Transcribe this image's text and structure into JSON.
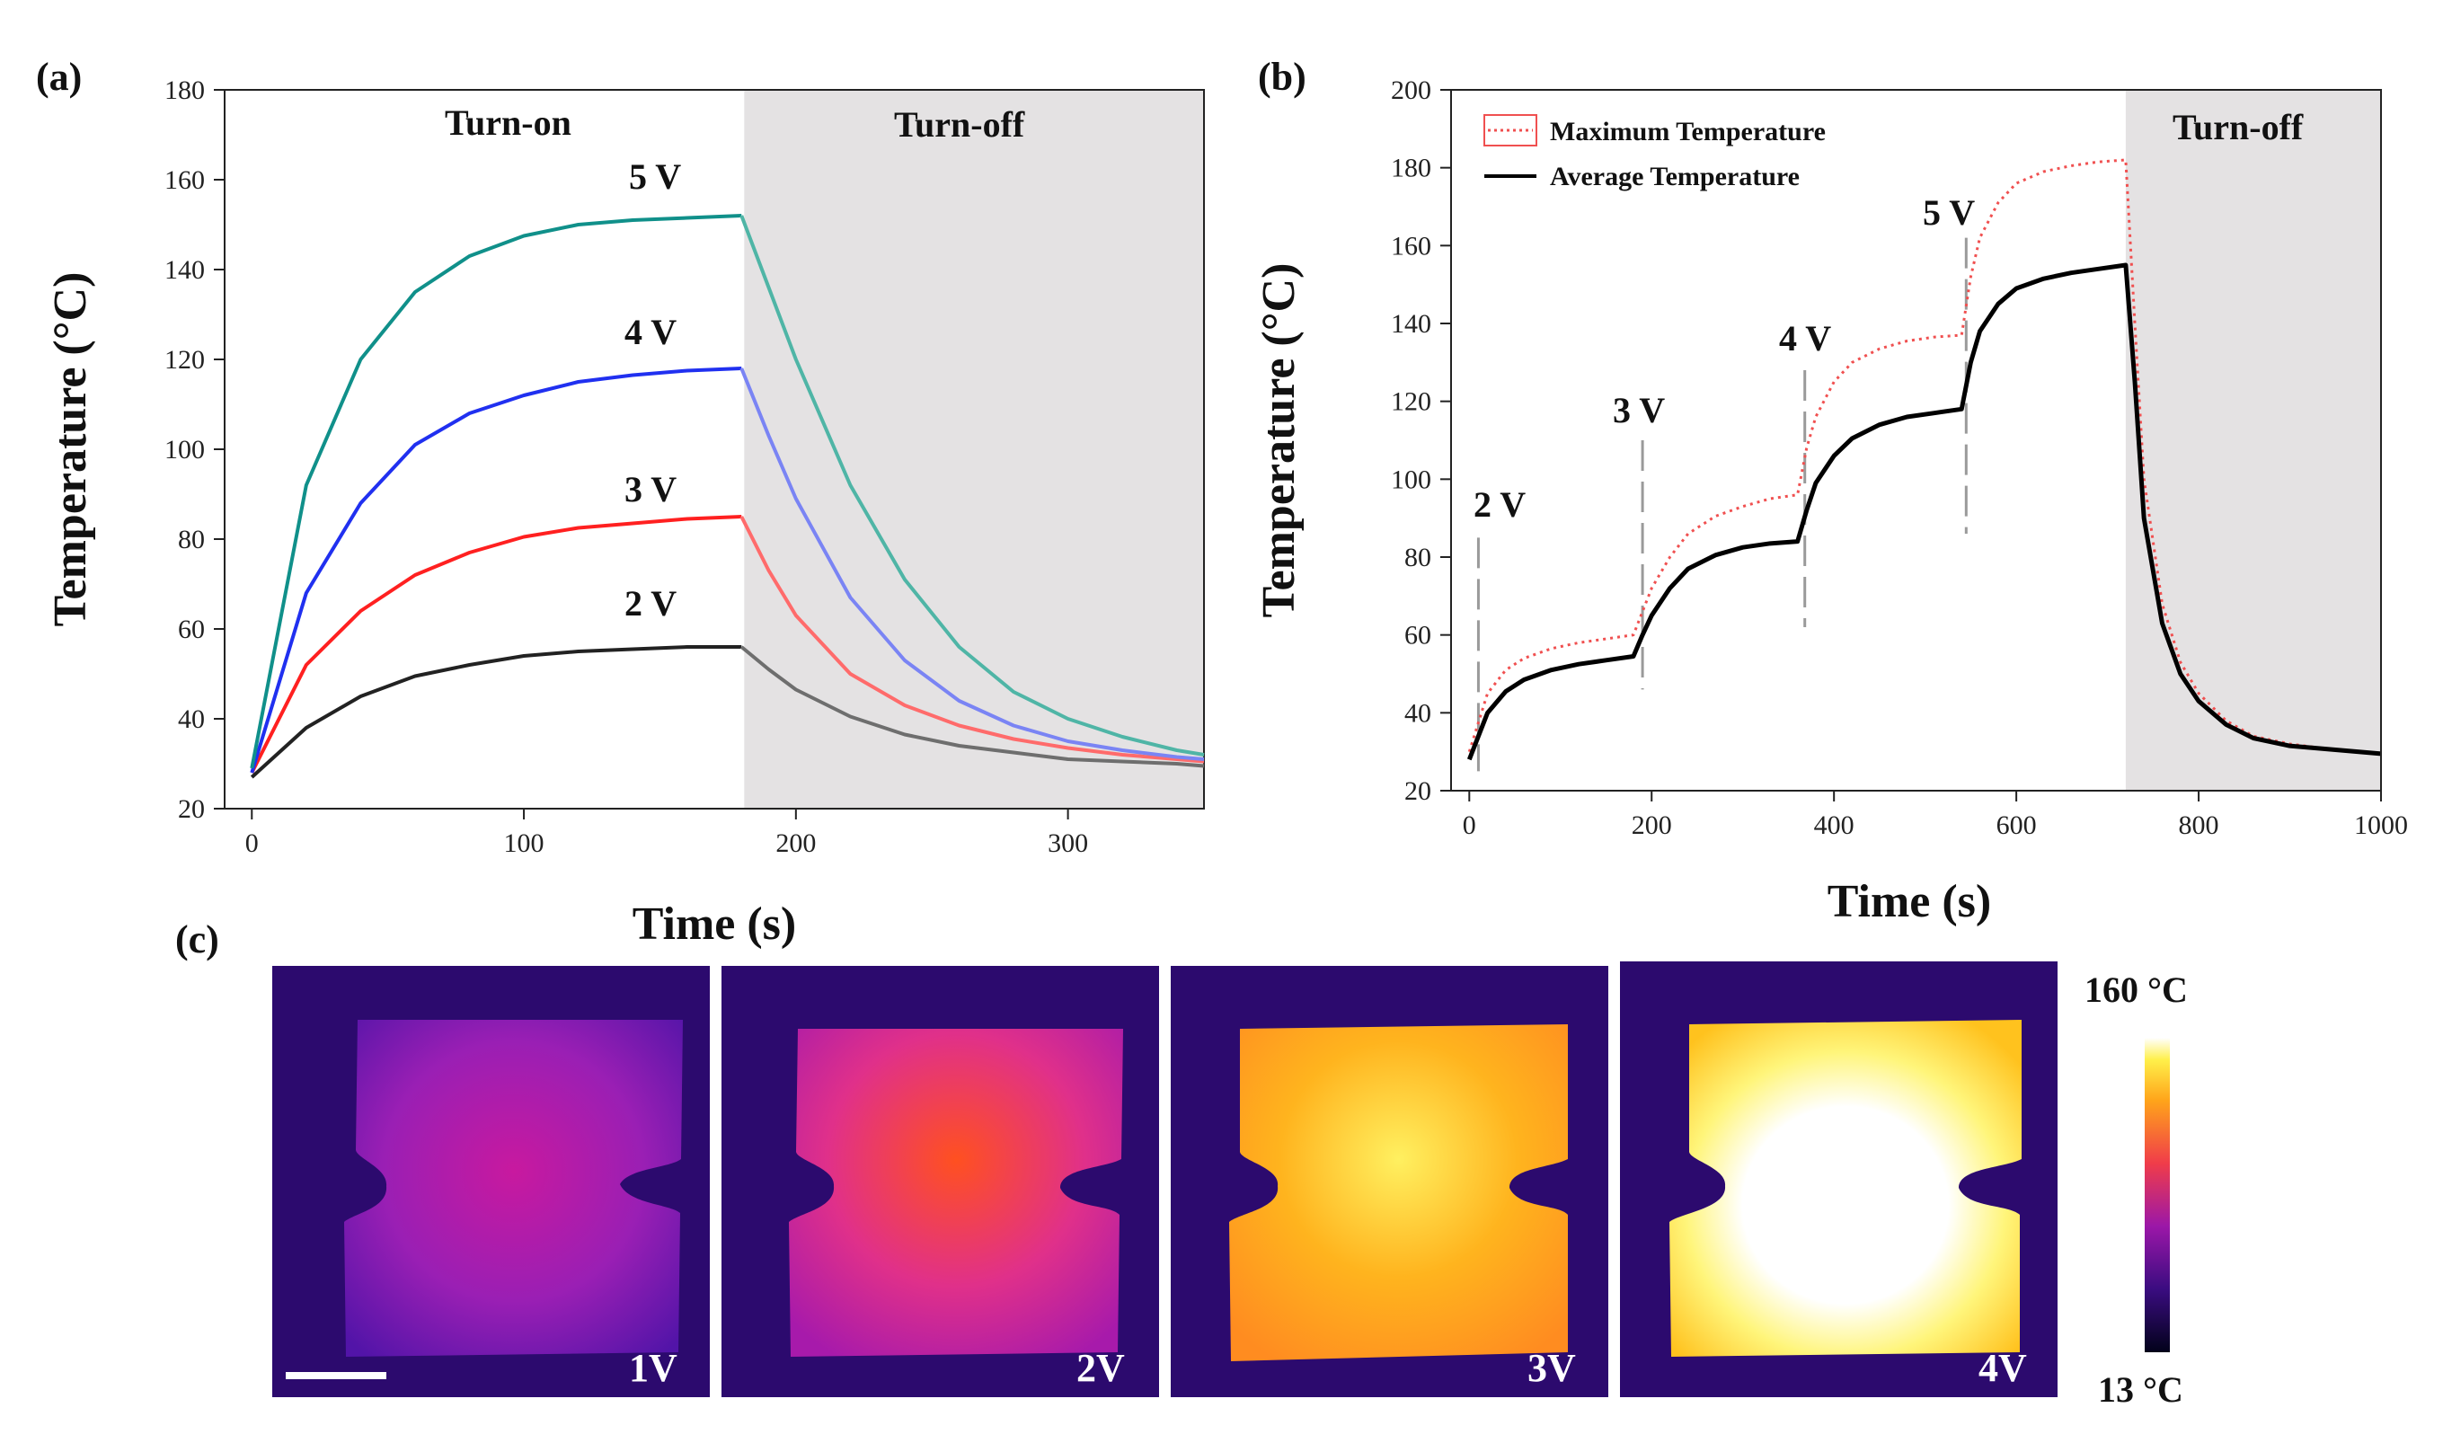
{
  "panel_labels": {
    "a": "(a)",
    "b": "(b)",
    "c": "(c)"
  },
  "chart_data": [
    {
      "type": "line",
      "panel": "(a)",
      "xlabel": "Time (s)",
      "ylabel": "Temperature (°C)",
      "xlim": [
        -10,
        350
      ],
      "ylim": [
        20,
        180
      ],
      "xticks": [
        0,
        100,
        200,
        300
      ],
      "yticks": [
        20,
        40,
        60,
        80,
        100,
        120,
        140,
        160,
        180
      ],
      "regions": [
        {
          "label": "Turn-on",
          "start": -10,
          "end": 181,
          "shaded": false
        },
        {
          "label": "Turn-off",
          "start": 181,
          "end": 350,
          "shaded": true,
          "color": "#e4e2e3"
        }
      ],
      "series": [
        {
          "name": "2 V",
          "color": "#222222",
          "off_color": "#6e6e6e",
          "x": [
            0,
            20,
            40,
            60,
            80,
            100,
            120,
            140,
            160,
            180,
            190,
            200,
            220,
            240,
            260,
            280,
            300,
            320,
            340,
            350
          ],
          "y": [
            27,
            38,
            45,
            49.5,
            52,
            54,
            55,
            55.5,
            56,
            56,
            51,
            46.5,
            40.5,
            36.5,
            34,
            32.5,
            31,
            30.5,
            30,
            29.5
          ]
        },
        {
          "name": "3 V",
          "color": "#ff2020",
          "off_color": "#ff6b6b",
          "x": [
            0,
            20,
            40,
            60,
            80,
            100,
            120,
            140,
            160,
            180,
            190,
            200,
            220,
            240,
            260,
            280,
            300,
            320,
            340,
            350
          ],
          "y": [
            28,
            52,
            64,
            72,
            77,
            80.5,
            82.5,
            83.5,
            84.5,
            85,
            73,
            63,
            50,
            43,
            38.5,
            35.5,
            33.5,
            32,
            31,
            30.5
          ]
        },
        {
          "name": "4 V",
          "color": "#2030f0",
          "off_color": "#7a84f4",
          "x": [
            0,
            20,
            40,
            60,
            80,
            100,
            120,
            140,
            160,
            180,
            190,
            200,
            220,
            240,
            260,
            280,
            300,
            320,
            340,
            350
          ],
          "y": [
            28,
            68,
            88,
            101,
            108,
            112,
            115,
            116.5,
            117.5,
            118,
            103,
            89,
            67,
            53,
            44,
            38.5,
            35,
            33,
            31.5,
            31
          ]
        },
        {
          "name": "5 V",
          "color": "#10908a",
          "off_color": "#4fb5a6",
          "x": [
            0,
            20,
            40,
            60,
            80,
            100,
            120,
            140,
            160,
            180,
            190,
            200,
            220,
            240,
            260,
            280,
            300,
            320,
            340,
            350
          ],
          "y": [
            29,
            92,
            120,
            135,
            143,
            147.5,
            150,
            151,
            151.5,
            152,
            136,
            120,
            92,
            71,
            56,
            46,
            40,
            36,
            33,
            32
          ]
        }
      ]
    },
    {
      "type": "line",
      "panel": "(b)",
      "xlabel": "Time (s)",
      "ylabel": "Temperature (°C)",
      "xlim": [
        -20,
        1000
      ],
      "ylim": [
        20,
        200
      ],
      "xticks": [
        0,
        200,
        400,
        600,
        800,
        1000
      ],
      "yticks": [
        20,
        40,
        60,
        80,
        100,
        120,
        140,
        160,
        180,
        200
      ],
      "regions": [
        {
          "label": "Turn-off",
          "start": 720,
          "end": 1000,
          "shaded": true,
          "color": "#e4e2e3"
        }
      ],
      "step_markers": [
        {
          "label": "2 V",
          "x": 10,
          "y_top": 85,
          "y_bottom": 25
        },
        {
          "label": "3 V",
          "x": 190,
          "y_top": 110,
          "y_bottom": 46
        },
        {
          "label": "4 V",
          "x": 368,
          "y_top": 128,
          "y_bottom": 62
        },
        {
          "label": "5 V",
          "x": 545,
          "y_top": 162,
          "y_bottom": 86
        }
      ],
      "legend": {
        "position": "top-left"
      },
      "series": [
        {
          "name": "Maximum Temperature",
          "color": "#f05050",
          "style": "dotted",
          "x": [
            0,
            20,
            40,
            60,
            90,
            120,
            150,
            180,
            190,
            200,
            220,
            240,
            270,
            300,
            330,
            360,
            370,
            380,
            400,
            420,
            450,
            480,
            510,
            540,
            550,
            560,
            580,
            600,
            630,
            660,
            690,
            720,
            730,
            740,
            760,
            780,
            800,
            830,
            860,
            900,
            950,
            1000
          ],
          "y": [
            30,
            45,
            51,
            54,
            56.5,
            58,
            59,
            60,
            66,
            72,
            80,
            86,
            90.5,
            93,
            95,
            96,
            108,
            116,
            125,
            130,
            133.5,
            135.5,
            136.5,
            137,
            152,
            162,
            171,
            176,
            179,
            180.5,
            181.5,
            182,
            140,
            100,
            68,
            53,
            45,
            38,
            34,
            32,
            30.5,
            29.5
          ]
        },
        {
          "name": "Average Temperature",
          "color": "#000000",
          "style": "solid",
          "x": [
            0,
            20,
            40,
            60,
            90,
            120,
            150,
            180,
            190,
            200,
            220,
            240,
            270,
            300,
            330,
            360,
            370,
            380,
            400,
            420,
            450,
            480,
            510,
            540,
            550,
            560,
            580,
            600,
            630,
            660,
            690,
            720,
            730,
            740,
            760,
            780,
            800,
            830,
            860,
            900,
            950,
            1000
          ],
          "y": [
            28,
            40,
            45.5,
            48.5,
            51,
            52.5,
            53.5,
            54.5,
            60,
            65,
            72,
            77,
            80.5,
            82.5,
            83.5,
            84,
            92,
            99,
            106,
            110.5,
            114,
            116,
            117,
            118,
            130,
            138,
            145,
            149,
            151.5,
            153,
            154,
            155,
            125,
            90,
            63,
            50,
            43,
            37,
            33.5,
            31.5,
            30.5,
            29.5
          ]
        }
      ]
    }
  ],
  "thermal_images": {
    "scale_min_label": "13 °C",
    "scale_max_label": "160 °C",
    "frames": [
      {
        "label": "1V",
        "colors": [
          "#c8199f",
          "#9a1fb4",
          "#5214a8"
        ]
      },
      {
        "label": "2V",
        "colors": [
          "#ff5020",
          "#e0308a",
          "#a71aab"
        ]
      },
      {
        "label": "3V",
        "colors": [
          "#fff060",
          "#ffb41e",
          "#ff8c20"
        ]
      },
      {
        "label": "4V",
        "colors": [
          "#ffffff",
          "#fff57a",
          "#ffc21e"
        ]
      }
    ]
  }
}
